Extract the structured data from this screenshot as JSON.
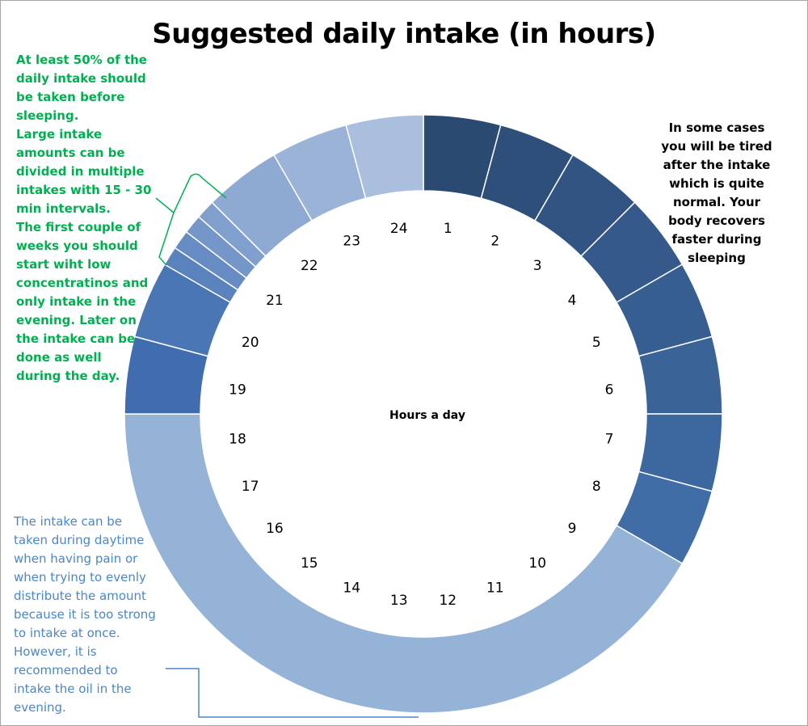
{
  "chart_data": {
    "type": "pie",
    "style": "doughnut",
    "title": "Suggested daily intake (in hours)",
    "center_label": "Hours a day",
    "start": "top",
    "direction": "clockwise",
    "total": 24,
    "slices": [
      {
        "value": 1,
        "color": "#2b4a72"
      },
      {
        "value": 1,
        "color": "#2e4f7a"
      },
      {
        "value": 1,
        "color": "#315482"
      },
      {
        "value": 1,
        "color": "#34598a"
      },
      {
        "value": 1,
        "color": "#375e91"
      },
      {
        "value": 1,
        "color": "#3a6398"
      },
      {
        "value": 1,
        "color": "#3d689f"
      },
      {
        "value": 1,
        "color": "#406da6"
      },
      {
        "value": 10,
        "color": "#95b3d7"
      },
      {
        "value": 1,
        "color": "#406db0"
      },
      {
        "value": 1,
        "color": "#4a76b6"
      },
      {
        "value": 0.25,
        "color": "#5a82bd"
      },
      {
        "value": 0.25,
        "color": "#678cc3"
      },
      {
        "value": 0.25,
        "color": "#7496c8"
      },
      {
        "value": 0.25,
        "color": "#809fcd"
      },
      {
        "value": 1,
        "color": "#8ea9d2"
      },
      {
        "value": 1,
        "color": "#9cb3d8"
      },
      {
        "value": 1,
        "color": "#aabedd"
      }
    ],
    "tick_labels": [
      "1",
      "2",
      "3",
      "4",
      "5",
      "6",
      "7",
      "8",
      "9",
      "10",
      "11",
      "12",
      "13",
      "14",
      "15",
      "16",
      "17",
      "18",
      "19",
      "20",
      "21",
      "22",
      "23",
      "24"
    ],
    "grid": false,
    "legend": "none"
  },
  "annotations": {
    "left_top": [
      "At least 50% of the",
      "daily intake should",
      "be taken before",
      "sleeping.",
      "Large intake",
      "amounts can be",
      "divided in multiple",
      "intakes with 15 - 30",
      "min intervals.",
      "The first couple of",
      "weeks you should",
      "start wiht low",
      "concentratinos and",
      "only intake in the",
      "evening. Later on",
      "the intake can be",
      "done as well",
      "during the day."
    ],
    "left_bottom": [
      "The intake can be",
      "taken during daytime",
      "when having pain or",
      "when trying to evenly",
      "distribute the amount",
      "because it is too strong",
      "to intake at once.",
      "However, it is",
      "recommended to",
      "intake the oil in the",
      "evening."
    ],
    "right": [
      "In some cases",
      "you will be tired",
      "after the intake",
      "which is quite",
      "normal. Your",
      "body recovers",
      "faster during",
      "sleeping"
    ],
    "colors": {
      "left_top": "#00b050",
      "left_bottom": "#4a86c8",
      "right": "#000000"
    }
  }
}
